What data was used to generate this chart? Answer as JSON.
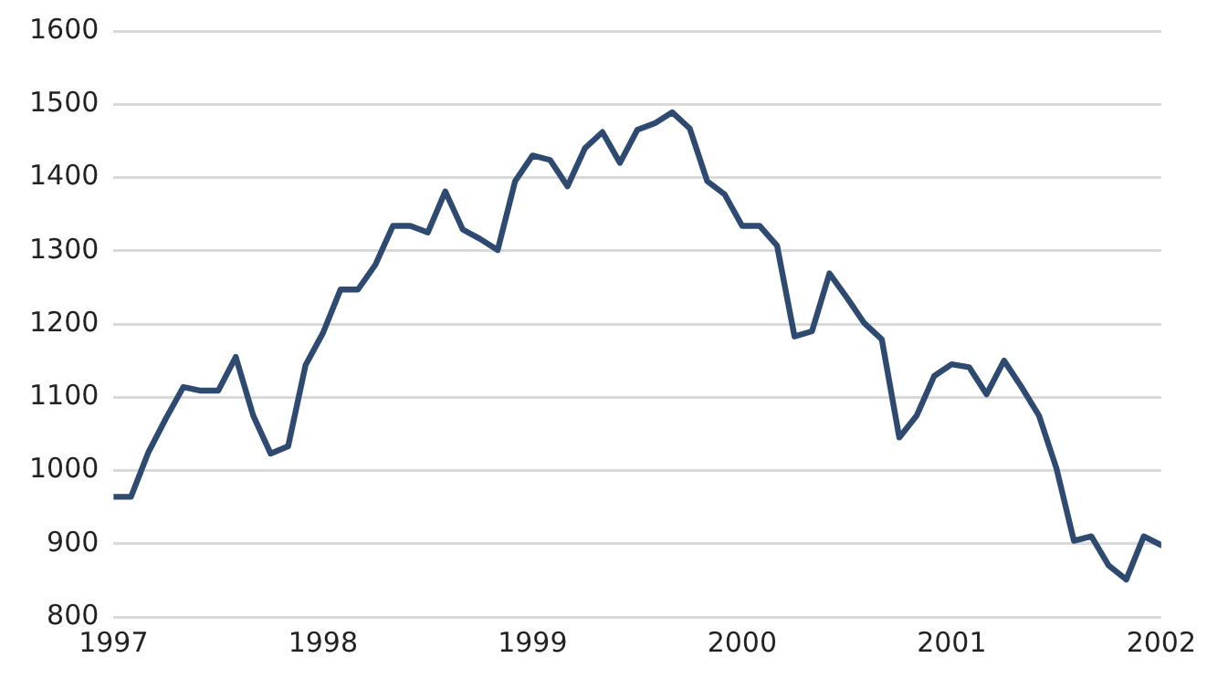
{
  "chart_data": {
    "type": "line",
    "x": [
      "1997-01",
      "1997-02",
      "1997-03",
      "1997-04",
      "1997-05",
      "1997-06",
      "1997-07",
      "1997-08",
      "1997-09",
      "1997-10",
      "1997-11",
      "1997-12",
      "1998-01",
      "1998-02",
      "1998-03",
      "1998-04",
      "1998-05",
      "1998-06",
      "1998-07",
      "1998-08",
      "1998-09",
      "1998-10",
      "1998-11",
      "1998-12",
      "1999-01",
      "1999-02",
      "1999-03",
      "1999-04",
      "1999-05",
      "1999-06",
      "1999-07",
      "1999-08",
      "1999-09",
      "1999-10",
      "1999-11",
      "1999-12",
      "2000-01",
      "2000-02",
      "2000-03",
      "2000-04",
      "2000-05",
      "2000-06",
      "2000-07",
      "2000-08",
      "2000-09",
      "2000-10",
      "2000-11",
      "2000-12",
      "2001-01",
      "2001-02",
      "2001-03",
      "2001-04",
      "2001-05",
      "2001-06",
      "2001-07",
      "2001-08",
      "2001-09",
      "2001-10",
      "2001-11",
      "2001-12",
      "2002-01"
    ],
    "series": [
      {
        "color": "#2e4a70",
        "values": [
          964,
          964,
          1025,
          1071,
          1114,
          1109,
          1109,
          1155,
          1075,
          1023,
          1033,
          1144,
          1188,
          1247,
          1247,
          1281,
          1334,
          1334,
          1325,
          1381,
          1329,
          1316,
          1301,
          1395,
          1430,
          1424,
          1388,
          1440,
          1462,
          1420,
          1465,
          1474,
          1489,
          1467,
          1395,
          1377,
          1334,
          1334,
          1307,
          1183,
          1190,
          1269,
          1236,
          1201,
          1179,
          1045,
          1075,
          1129,
          1145,
          1141,
          1104,
          1150,
          1114,
          1075,
          1003,
          904,
          910,
          870,
          851,
          910,
          898
        ]
      }
    ],
    "xlim": [
      "1997-01",
      "2002-01"
    ],
    "xticks": [
      "1997",
      "1998",
      "1999",
      "2000",
      "2001",
      "2002"
    ],
    "ylim": [
      800,
      1600
    ],
    "yticks": [
      800,
      900,
      1000,
      1100,
      1200,
      1300,
      1400,
      1500,
      1600
    ],
    "grid": "y",
    "legend": false,
    "marker": "none",
    "line_style": "solid"
  }
}
